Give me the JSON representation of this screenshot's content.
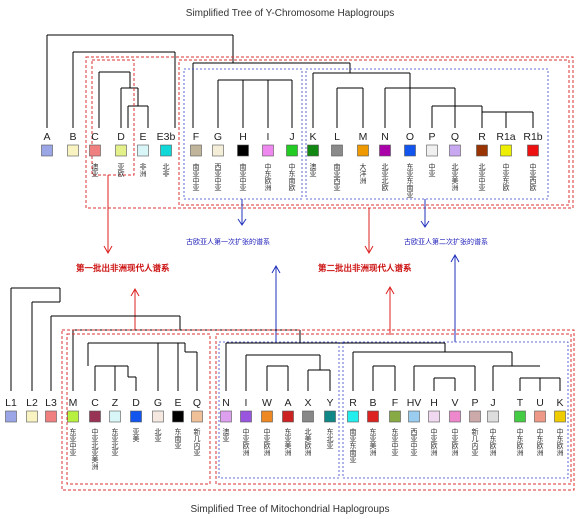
{
  "y_title": "Simplified Tree of Y-Chromosome Haplogroups",
  "mt_title": "Simplified Tree of Mitochondrial Haplogroups",
  "y_haplogroups": [
    {
      "name": "A",
      "color": "#9aa6e6",
      "region": ""
    },
    {
      "name": "B",
      "color": "#f8f3c0",
      "region": ""
    },
    {
      "name": "C",
      "color": "#f08080",
      "region": "澳亚"
    },
    {
      "name": "D",
      "color": "#e4f08a",
      "region": "亚欧"
    },
    {
      "name": "E",
      "color": "#d8f6f8",
      "region": "非洲"
    },
    {
      "name": "E3b",
      "color": "#10d8d8",
      "region": "北非"
    },
    {
      "name": "F",
      "color": "#c0b49a",
      "region": "南亚中亚"
    },
    {
      "name": "G",
      "color": "#f4eed8",
      "region": "西亚中亚"
    },
    {
      "name": "H",
      "color": "#000000",
      "region": "南亚中亚"
    },
    {
      "name": "I",
      "color": "#ee88ee",
      "region": "中东欧洲"
    },
    {
      "name": "J",
      "color": "#22cc22",
      "region": "中东南欧"
    },
    {
      "name": "K",
      "color": "#118811",
      "region": "澳亚"
    },
    {
      "name": "L",
      "color": "#8a8a8a",
      "region": "南亚西亚"
    },
    {
      "name": "M",
      "color": "#ee9900",
      "region": "大洋洲"
    },
    {
      "name": "N",
      "color": "#aa00aa",
      "region": "北亚北欧"
    },
    {
      "name": "O",
      "color": "#1155ee",
      "region": "东亚东南亚"
    },
    {
      "name": "P",
      "color": "#f0f0f0",
      "region": "中亚"
    },
    {
      "name": "Q",
      "color": "#c8a8f0",
      "region": "北亚美洲"
    },
    {
      "name": "R",
      "color": "#993300",
      "region": "北亚中亚"
    },
    {
      "name": "R1a",
      "color": "#eeee00",
      "region": "中亚东欧"
    },
    {
      "name": "R1b",
      "color": "#ee1111",
      "region": "中亚西欧"
    }
  ],
  "mt_haplogroups": [
    {
      "name": "L1",
      "color": "#9aa6e6",
      "region": ""
    },
    {
      "name": "L2",
      "color": "#f8f3c0",
      "region": ""
    },
    {
      "name": "L3",
      "color": "#f08080",
      "region": ""
    },
    {
      "name": "M",
      "color": "#b8f040",
      "region": "东亚中亚"
    },
    {
      "name": "C",
      "color": "#993355",
      "region": "中亚北亚美洲"
    },
    {
      "name": "Z",
      "color": "#d8f6f8",
      "region": "东亚北亚"
    },
    {
      "name": "D",
      "color": "#1155ee",
      "region": "亚美"
    },
    {
      "name": "G",
      "color": "#f4e8e0",
      "region": "北亚"
    },
    {
      "name": "E",
      "color": "#000000",
      "region": "东南亚"
    },
    {
      "name": "Q",
      "color": "#f0c098",
      "region": "新几内亚"
    },
    {
      "name": "N",
      "color": "#dda0ee",
      "region": "澳亚"
    },
    {
      "name": "I",
      "color": "#9955dd",
      "region": "中亚欧洲"
    },
    {
      "name": "W",
      "color": "#ee8822",
      "region": "中亚欧洲"
    },
    {
      "name": "A",
      "color": "#cc2222",
      "region": "东亚美洲"
    },
    {
      "name": "X",
      "color": "#888888",
      "region": "北美欧洲"
    },
    {
      "name": "Y",
      "color": "#118888",
      "region": "东北亚"
    },
    {
      "name": "R",
      "color": "#22eeee",
      "region": "南亚东南亚"
    },
    {
      "name": "B",
      "color": "#dd2222",
      "region": "东亚美洲"
    },
    {
      "name": "F",
      "color": "#88aa44",
      "region": "东亚中亚"
    },
    {
      "name": "HV",
      "color": "#99ccee",
      "region": "西亚中亚"
    },
    {
      "name": "H",
      "color": "#f0d8f0",
      "region": "中亚欧洲"
    },
    {
      "name": "V",
      "color": "#ee88cc",
      "region": "中亚欧洲"
    },
    {
      "name": "P",
      "color": "#ccaaaa",
      "region": "新几内亚"
    },
    {
      "name": "J",
      "color": "#dddddd",
      "region": "中东欧洲"
    },
    {
      "name": "T",
      "color": "#44cc44",
      "region": "中东欧洲"
    },
    {
      "name": "U",
      "color": "#ee9988",
      "region": "中东欧洲"
    },
    {
      "name": "K",
      "color": "#eecc00",
      "region": "中东欧洲"
    }
  ],
  "labels": {
    "first_expansion_blue": "古欧亚人第一次扩张的谱系",
    "second_expansion_blue": "古欧亚人第二次扩张的谱系",
    "first_exodus_red": "第一批出非洲现代人谱系",
    "second_exodus_red": "第二批出非洲现代人谱系"
  }
}
